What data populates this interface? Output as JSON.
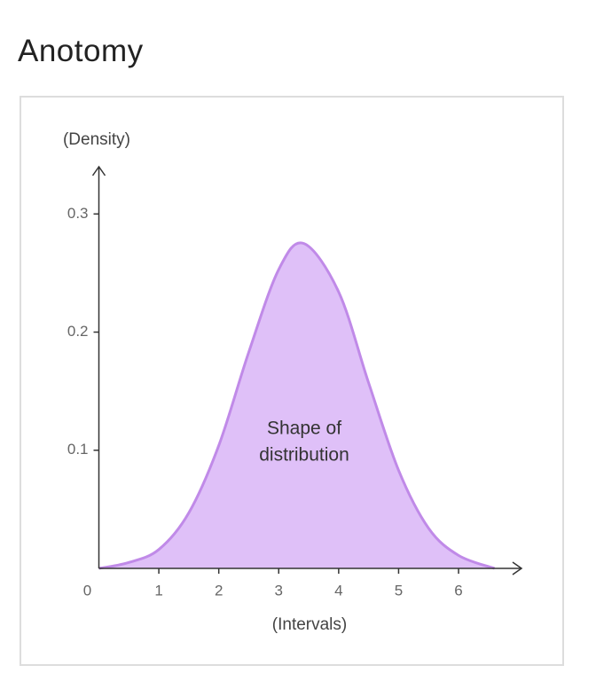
{
  "heading": "Anotomy",
  "chart_data": {
    "type": "area",
    "y_label": "(Density)",
    "x_label": "(Intervals)",
    "annotation": [
      "Shape of",
      "distribution"
    ],
    "x": [
      0,
      0.5,
      1,
      1.5,
      2,
      2.5,
      3,
      3.42,
      4,
      4.5,
      5,
      5.5,
      6,
      6.6
    ],
    "values": [
      0,
      0.005,
      0.016,
      0.047,
      0.104,
      0.183,
      0.253,
      0.275,
      0.234,
      0.157,
      0.083,
      0.034,
      0.011,
      0
    ],
    "color": "#c08ae8",
    "fill": "#dfc0f8",
    "xlim": [
      0,
      7.05
    ],
    "ylim": [
      0,
      0.34
    ],
    "xticks": [
      0,
      1,
      2,
      3,
      4,
      5,
      6
    ],
    "yticks": [
      0.1,
      0.2,
      0.3
    ]
  }
}
